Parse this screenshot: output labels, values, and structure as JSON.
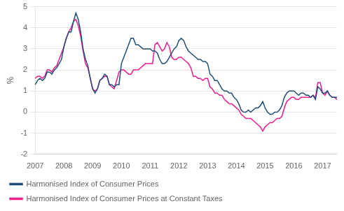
{
  "chart_data": {
    "type": "line",
    "ylabel": "%",
    "categories": [
      "2007",
      null,
      null,
      null,
      null,
      null,
      null,
      null,
      null,
      null,
      null,
      null,
      "2008",
      null,
      null,
      null,
      null,
      null,
      null,
      null,
      null,
      null,
      null,
      null,
      "2009",
      null,
      null,
      null,
      null,
      null,
      null,
      null,
      null,
      null,
      null,
      null,
      "2010",
      null,
      null,
      null,
      null,
      null,
      null,
      null,
      null,
      null,
      null,
      null,
      "2011",
      null,
      null,
      null,
      null,
      null,
      null,
      null,
      null,
      null,
      null,
      null,
      "2012",
      null,
      null,
      null,
      null,
      null,
      null,
      null,
      null,
      null,
      null,
      null,
      "2013",
      null,
      null,
      null,
      null,
      null,
      null,
      null,
      null,
      null,
      null,
      null,
      "2014",
      null,
      null,
      null,
      null,
      null,
      null,
      null,
      null,
      null,
      null,
      null,
      "2015",
      null,
      null,
      null,
      null,
      null,
      null,
      null,
      null,
      null,
      null,
      null,
      "2016",
      null,
      null,
      null,
      null,
      null,
      null,
      null,
      null,
      null,
      null,
      null,
      "2017",
      null,
      null,
      null,
      null,
      null,
      null
    ],
    "series": [
      {
        "name": "Harmonised Index of Consumer\nPrices",
        "color": "#1f4e79",
        "values": [
          1.3,
          1.5,
          1.6,
          1.5,
          1.6,
          1.9,
          1.9,
          1.8,
          2.0,
          2.1,
          2.3,
          2.5,
          3.1,
          3.5,
          3.8,
          3.8,
          4.3,
          4.7,
          4.4,
          3.8,
          3.0,
          2.5,
          2.2,
          1.6,
          1.1,
          0.9,
          1.1,
          1.5,
          1.6,
          1.8,
          1.7,
          1.3,
          1.3,
          1.2,
          1.3,
          1.3,
          2.3,
          2.6,
          2.9,
          3.2,
          3.5,
          3.5,
          3.2,
          3.2,
          3.1,
          3.0,
          3.0,
          3.0,
          3.0,
          2.9,
          2.9,
          2.8,
          2.5,
          2.3,
          2.3,
          2.4,
          2.6,
          2.8,
          3.0,
          3.1,
          3.4,
          3.5,
          3.4,
          3.1,
          2.9,
          2.8,
          2.7,
          2.6,
          2.5,
          2.5,
          2.4,
          2.4,
          2.3,
          1.8,
          1.7,
          1.5,
          1.5,
          1.3,
          1.1,
          1.0,
          1.0,
          0.9,
          0.9,
          0.7,
          0.6,
          0.4,
          0.1,
          0.0,
          0.0,
          0.1,
          0.0,
          0.1,
          0.2,
          0.2,
          0.3,
          0.5,
          0.2,
          0.0,
          -0.1,
          -0.1,
          0.0,
          0.0,
          0.1,
          0.3,
          0.7,
          0.9,
          1.0,
          1.0,
          1.0,
          0.9,
          0.8,
          0.9,
          0.9,
          0.8,
          0.8,
          0.7,
          0.8,
          0.6,
          1.2,
          1.1,
          0.9,
          0.9,
          1.0,
          0.8,
          0.7,
          0.7,
          0.7
        ]
      },
      {
        "name": "Harmonised Index of Consumer\nPrices at Constant Taxes",
        "color": "#e91e8c",
        "values": [
          1.6,
          1.7,
          1.7,
          1.6,
          1.7,
          2.0,
          2.0,
          1.9,
          2.1,
          2.2,
          2.5,
          2.8,
          3.1,
          3.5,
          3.8,
          4.0,
          4.3,
          4.4,
          4.1,
          3.6,
          2.9,
          2.3,
          2.1,
          1.6,
          1.1,
          1.0,
          1.1,
          1.5,
          1.6,
          1.7,
          1.7,
          1.3,
          1.2,
          1.1,
          1.5,
          1.9,
          2.0,
          2.0,
          1.9,
          1.8,
          1.8,
          2.0,
          2.0,
          2.0,
          2.1,
          2.2,
          2.3,
          2.3,
          2.3,
          2.3,
          3.2,
          3.3,
          3.1,
          2.9,
          3.0,
          3.3,
          3.1,
          2.6,
          2.5,
          2.5,
          2.6,
          2.6,
          2.5,
          2.4,
          2.3,
          2.1,
          1.7,
          1.7,
          1.6,
          1.6,
          1.5,
          1.6,
          1.6,
          1.2,
          1.1,
          0.9,
          0.9,
          0.8,
          0.8,
          0.6,
          0.5,
          0.4,
          0.4,
          0.3,
          0.2,
          0.1,
          -0.1,
          -0.2,
          -0.3,
          -0.3,
          -0.3,
          -0.4,
          -0.5,
          -0.6,
          -0.7,
          -0.9,
          -0.7,
          -0.6,
          -0.5,
          -0.5,
          -0.4,
          -0.3,
          -0.3,
          -0.2,
          0.2,
          0.5,
          0.6,
          0.7,
          0.7,
          0.6,
          0.6,
          0.7,
          0.7,
          0.7,
          0.7,
          0.7,
          0.8,
          0.7,
          1.4,
          1.4,
          0.9,
          0.8,
          1.0,
          0.8,
          0.7,
          0.7,
          0.6
        ]
      }
    ],
    "ylim": [
      -2,
      5
    ],
    "yticks": [
      -2,
      -1,
      0,
      1,
      2,
      3,
      4,
      5
    ],
    "grid": true,
    "legend": "lower left"
  }
}
